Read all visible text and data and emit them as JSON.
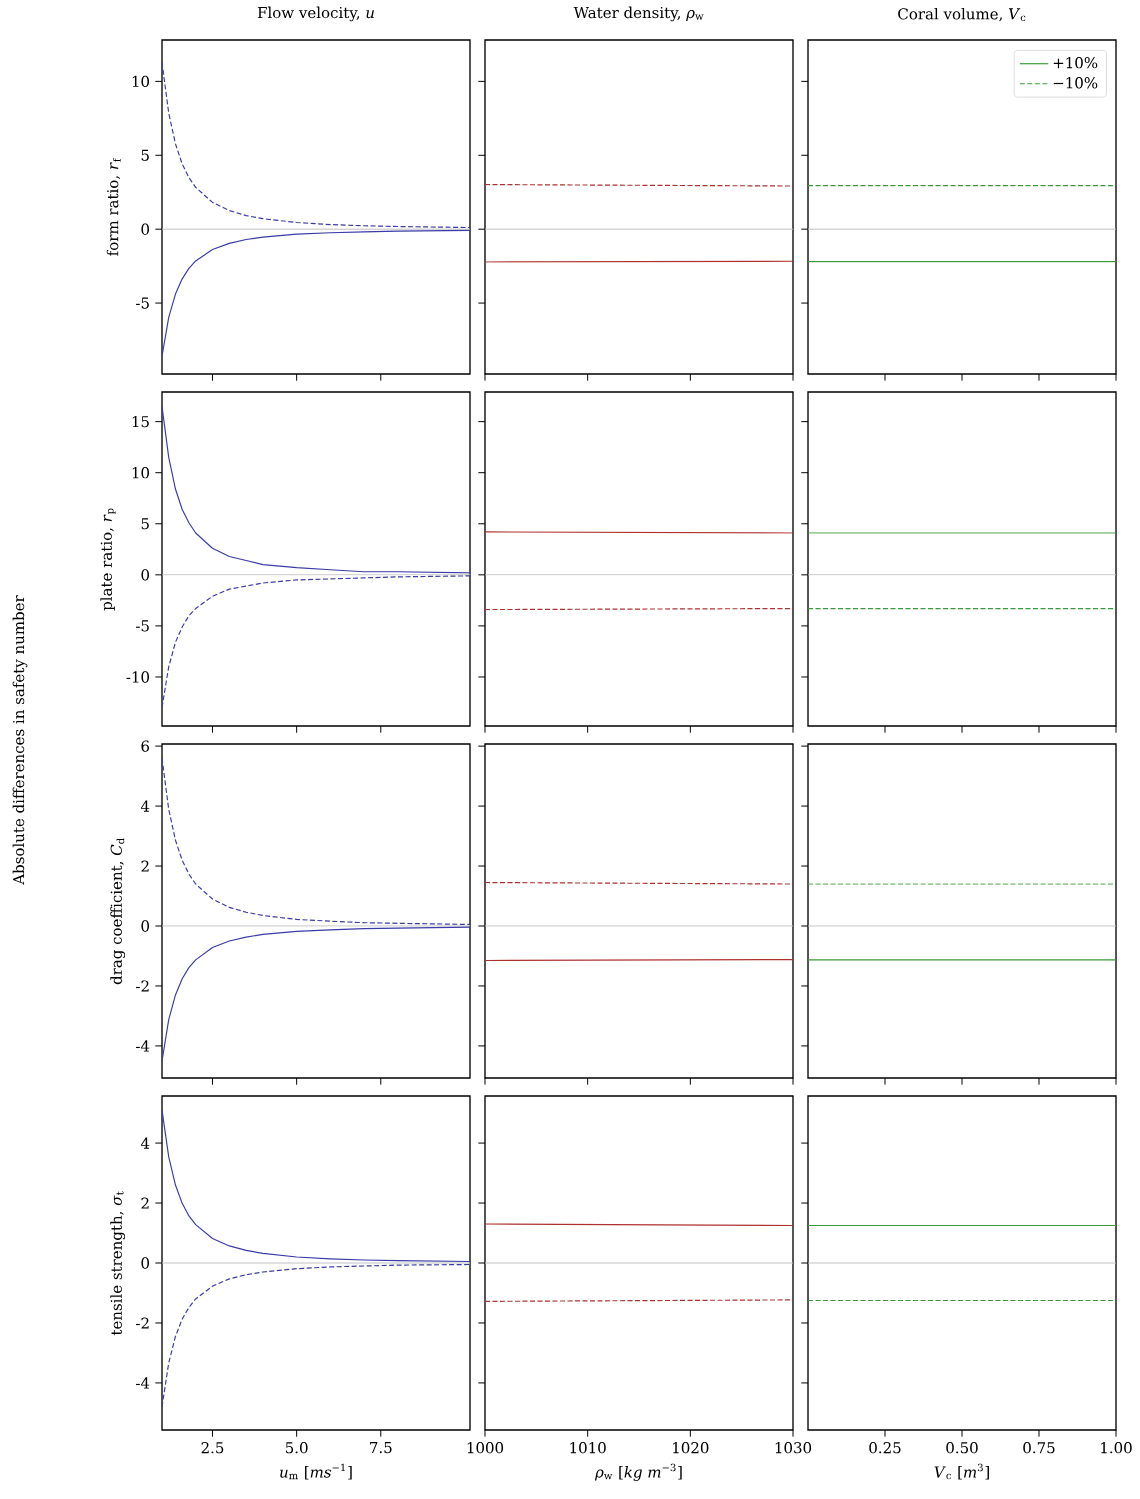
{
  "chart_data": [
    {
      "type": "line",
      "title": "Flow velocity, *u*",
      "ylabel": "form ratio, *r*$_{f}$",
      "annotations": [
        "Absolute differences in safety number"
      ],
      "x": [
        1,
        1.2,
        1.4,
        1.6,
        1.8,
        2,
        2.5,
        3,
        3.5,
        4,
        5,
        6,
        7,
        8,
        10.15
      ],
      "xlim": [
        1,
        10.15
      ],
      "xticks": [
        2.5,
        5,
        7.5
      ],
      "ylim": [
        -9.8,
        12.8
      ],
      "yticks": [
        -5,
        0,
        5,
        10
      ],
      "tick_labels": "y",
      "ref_lines": [
        {
          "axis": "y",
          "value": 0,
          "color": "#c0c0c0"
        }
      ],
      "series": [
        {
          "color": "#3a3aa8",
          "line_style": "solid",
          "values": [
            -8.6,
            -5.97,
            -4.39,
            -3.36,
            -2.65,
            -2.15,
            -1.38,
            -0.96,
            -0.7,
            -0.54,
            -0.34,
            -0.24,
            -0.18,
            -0.13,
            -0.08
          ]
        },
        {
          "color": "#3a3aa8",
          "line_style": "dashed",
          "values": [
            11.3,
            7.85,
            5.77,
            4.41,
            3.49,
            2.83,
            1.81,
            1.26,
            0.92,
            0.71,
            0.45,
            0.31,
            0.23,
            0.18,
            0.11
          ]
        }
      ]
    },
    {
      "type": "line",
      "title": "Water density, *ρ*$_{w}$",
      "x": [
        1000,
        1030
      ],
      "xlim": [
        1000,
        1030
      ],
      "xticks": [
        1000,
        1010,
        1020,
        1030
      ],
      "ylim": [
        -9.8,
        12.8
      ],
      "yticks": [
        -5,
        0,
        5,
        10
      ],
      "tick_labels": false,
      "ref_lines": [
        {
          "axis": "y",
          "value": 0,
          "color": "#c0c0c0"
        }
      ],
      "series": [
        {
          "color": "#b03030",
          "line_style": "solid",
          "values": [
            -2.22,
            -2.17
          ]
        },
        {
          "color": "#b03030",
          "line_style": "dashed",
          "values": [
            3.02,
            2.92
          ]
        }
      ]
    },
    {
      "type": "line",
      "title": "Coral volume, *V*$_{c}$",
      "x": [
        0,
        1
      ],
      "xlim": [
        0,
        1
      ],
      "xticks": [
        0.25,
        0.5,
        0.75,
        1
      ],
      "ylim": [
        -9.8,
        12.8
      ],
      "yticks": [
        -5,
        0,
        5,
        10
      ],
      "tick_labels": false,
      "legend": "top right",
      "ref_lines": [
        {
          "axis": "y",
          "value": 0,
          "color": "#c0c0c0"
        }
      ],
      "series": [
        {
          "name": "+10%",
          "color": "#3a9a3a",
          "line_style": "solid",
          "values": [
            -2.2,
            -2.2
          ]
        },
        {
          "name": "−10%",
          "color": "#3a9a3a",
          "line_style": "dashed",
          "values": [
            2.95,
            2.95
          ]
        }
      ]
    },
    {
      "type": "line",
      "ylabel": "plate ratio, *r*$_{p}$",
      "x": [
        1,
        1.2,
        1.4,
        1.6,
        1.8,
        2,
        2.5,
        3,
        3.5,
        4,
        5,
        6,
        7,
        8,
        10.15
      ],
      "xlim": [
        1,
        10.15
      ],
      "xticks": [
        2.5,
        5,
        7.5
      ],
      "ylim": [
        -14.8,
        17.9
      ],
      "yticks": [
        -10,
        -5,
        0,
        5,
        10,
        15
      ],
      "tick_labels": "y",
      "ref_lines": [
        {
          "axis": "y",
          "value": 0,
          "color": "#c0c0c0"
        }
      ],
      "series": [
        {
          "color": "#3a3aa8",
          "line_style": "solid",
          "values": [
            16.5,
            11.5,
            8.4,
            6.4,
            5.1,
            4.1,
            2.6,
            1.8,
            1.4,
            1.0,
            0.7,
            0.5,
            0.3,
            0.3,
            0.2
          ]
        },
        {
          "color": "#3a3aa8",
          "line_style": "dashed",
          "values": [
            -13,
            -9.0,
            -6.6,
            -5.1,
            -4.0,
            -3.3,
            -2.1,
            -1.4,
            -1.1,
            -0.8,
            -0.5,
            -0.4,
            -0.3,
            -0.2,
            -0.1
          ]
        }
      ]
    },
    {
      "type": "line",
      "x": [
        1000,
        1030
      ],
      "xlim": [
        1000,
        1030
      ],
      "xticks": [
        1000,
        1010,
        1020,
        1030
      ],
      "ylim": [
        -14.8,
        17.9
      ],
      "yticks": [
        -10,
        -5,
        0,
        5,
        10,
        15
      ],
      "tick_labels": false,
      "ref_lines": [
        {
          "axis": "y",
          "value": 0,
          "color": "#c0c0c0"
        }
      ],
      "series": [
        {
          "color": "#b03030",
          "line_style": "solid",
          "values": [
            4.2,
            4.1
          ]
        },
        {
          "color": "#b03030",
          "line_style": "dashed",
          "values": [
            -3.4,
            -3.3
          ]
        }
      ]
    },
    {
      "type": "line",
      "x": [
        0,
        1
      ],
      "xlim": [
        0,
        1
      ],
      "xticks": [
        0.25,
        0.5,
        0.75,
        1
      ],
      "ylim": [
        -14.8,
        17.9
      ],
      "yticks": [
        -10,
        -5,
        0,
        5,
        10,
        15
      ],
      "tick_labels": false,
      "ref_lines": [
        {
          "axis": "y",
          "value": 0,
          "color": "#c0c0c0"
        }
      ],
      "series": [
        {
          "color": "#3a9a3a",
          "line_style": "solid",
          "values": [
            4.1,
            4.1
          ]
        },
        {
          "color": "#3a9a3a",
          "line_style": "dashed",
          "values": [
            -3.3,
            -3.3
          ]
        }
      ]
    },
    {
      "type": "line",
      "ylabel": "drag coefficient, *C*$_{d}$",
      "x": [
        1,
        1.2,
        1.4,
        1.6,
        1.8,
        2,
        2.5,
        3,
        3.5,
        4,
        5,
        6,
        7,
        8,
        10.15
      ],
      "xlim": [
        1,
        10.15
      ],
      "xticks": [
        2.5,
        5,
        7.5
      ],
      "ylim": [
        -5.07,
        6.07
      ],
      "yticks": [
        -4,
        -2,
        0,
        2,
        4,
        6
      ],
      "tick_labels": "y",
      "ref_lines": [
        {
          "axis": "y",
          "value": 0,
          "color": "#c0c0c0"
        }
      ],
      "series": [
        {
          "color": "#3a3aa8",
          "line_style": "solid",
          "values": [
            -4.5,
            -3.12,
            -2.3,
            -1.76,
            -1.39,
            -1.13,
            -0.72,
            -0.5,
            -0.37,
            -0.28,
            -0.18,
            -0.13,
            -0.09,
            -0.07,
            -0.04
          ]
        },
        {
          "color": "#3a3aa8",
          "line_style": "dashed",
          "values": [
            5.6,
            3.89,
            2.86,
            2.19,
            1.73,
            1.4,
            0.9,
            0.62,
            0.46,
            0.35,
            0.22,
            0.16,
            0.11,
            0.09,
            0.05
          ]
        }
      ]
    },
    {
      "type": "line",
      "x": [
        1000,
        1030
      ],
      "xlim": [
        1000,
        1030
      ],
      "xticks": [
        1000,
        1010,
        1020,
        1030
      ],
      "ylim": [
        -5.07,
        6.07
      ],
      "yticks": [
        -4,
        -2,
        0,
        2,
        4,
        6
      ],
      "tick_labels": false,
      "ref_lines": [
        {
          "axis": "y",
          "value": 0,
          "color": "#c0c0c0"
        }
      ],
      "series": [
        {
          "color": "#b03030",
          "line_style": "solid",
          "values": [
            -1.15,
            -1.12
          ]
        },
        {
          "color": "#b03030",
          "line_style": "dashed",
          "values": [
            1.45,
            1.4
          ]
        }
      ]
    },
    {
      "type": "line",
      "x": [
        0,
        1
      ],
      "xlim": [
        0,
        1
      ],
      "xticks": [
        0.25,
        0.5,
        0.75,
        1
      ],
      "ylim": [
        -5.07,
        6.07
      ],
      "yticks": [
        -4,
        -2,
        0,
        2,
        4,
        6
      ],
      "tick_labels": false,
      "ref_lines": [
        {
          "axis": "y",
          "value": 0,
          "color": "#c0c0c0"
        }
      ],
      "series": [
        {
          "color": "#3a9a3a",
          "line_style": "solid",
          "values": [
            -1.13,
            -1.13
          ]
        },
        {
          "color": "#3a9a3a",
          "line_style": "dashed",
          "values": [
            1.4,
            1.4
          ]
        }
      ]
    },
    {
      "type": "line",
      "ylabel": "tensile strength, *σ*$_{t}$",
      "xlabel": "*u*$_{m}$ [*ms*$^{−1}$]",
      "x": [
        1,
        1.2,
        1.4,
        1.6,
        1.8,
        2,
        2.5,
        3,
        3.5,
        4,
        5,
        6,
        7,
        8,
        10.15
      ],
      "xlim": [
        1,
        10.15
      ],
      "xticks": [
        2.5,
        {
          "value": 5,
          "label": "5.0"
        },
        7.5
      ],
      "ylim": [
        -5.57,
        5.57
      ],
      "yticks": [
        -4,
        -2,
        0,
        2,
        4
      ],
      "ref_lines": [
        {
          "axis": "y",
          "value": 0,
          "color": "#c0c0c0"
        }
      ],
      "series": [
        {
          "color": "#3a3aa8",
          "line_style": "solid",
          "values": [
            5.1,
            3.54,
            2.6,
            1.99,
            1.57,
            1.28,
            0.82,
            0.57,
            0.42,
            0.32,
            0.2,
            0.14,
            0.1,
            0.08,
            0.05
          ]
        },
        {
          "color": "#3a3aa8",
          "line_style": "dashed",
          "values": [
            -4.8,
            -3.33,
            -2.45,
            -1.87,
            -1.48,
            -1.2,
            -0.77,
            -0.53,
            -0.39,
            -0.3,
            -0.19,
            -0.13,
            -0.1,
            -0.07,
            -0.05
          ]
        }
      ]
    },
    {
      "type": "line",
      "xlabel": "*ρ*$_{w}$ [*kg m*$^{−3}$]",
      "x": [
        1000,
        1030
      ],
      "xlim": [
        1000,
        1030
      ],
      "xticks": [
        1000,
        1010,
        1020,
        1030
      ],
      "ylim": [
        -5.57,
        5.57
      ],
      "yticks": [
        -4,
        -2,
        0,
        2,
        4
      ],
      "tick_labels": "x",
      "ref_lines": [
        {
          "axis": "y",
          "value": 0,
          "color": "#c0c0c0"
        }
      ],
      "series": [
        {
          "color": "#b03030",
          "line_style": "solid",
          "values": [
            1.3,
            1.25
          ]
        },
        {
          "color": "#b03030",
          "line_style": "dashed",
          "values": [
            -1.28,
            -1.23
          ]
        }
      ]
    },
    {
      "type": "line",
      "xlabel": "*V*$_{c}$ [*m*$^{3}$]",
      "x": [
        0,
        1
      ],
      "xlim": [
        0,
        1
      ],
      "xticks": [
        0.25,
        {
          "value": 0.5,
          "label": "0.50"
        },
        0.75,
        {
          "value": 1,
          "label": "1.00"
        }
      ],
      "ylim": [
        -5.57,
        5.57
      ],
      "yticks": [
        -4,
        -2,
        0,
        2,
        4
      ],
      "tick_labels": "x",
      "ref_lines": [
        {
          "axis": "y",
          "value": 0,
          "color": "#c0c0c0"
        }
      ],
      "series": [
        {
          "color": "#3a9a3a",
          "line_style": "solid",
          "values": [
            1.25,
            1.25
          ]
        },
        {
          "color": "#3a9a3a",
          "line_style": "dashed",
          "values": [
            -1.25,
            -1.25
          ]
        }
      ]
    }
  ]
}
